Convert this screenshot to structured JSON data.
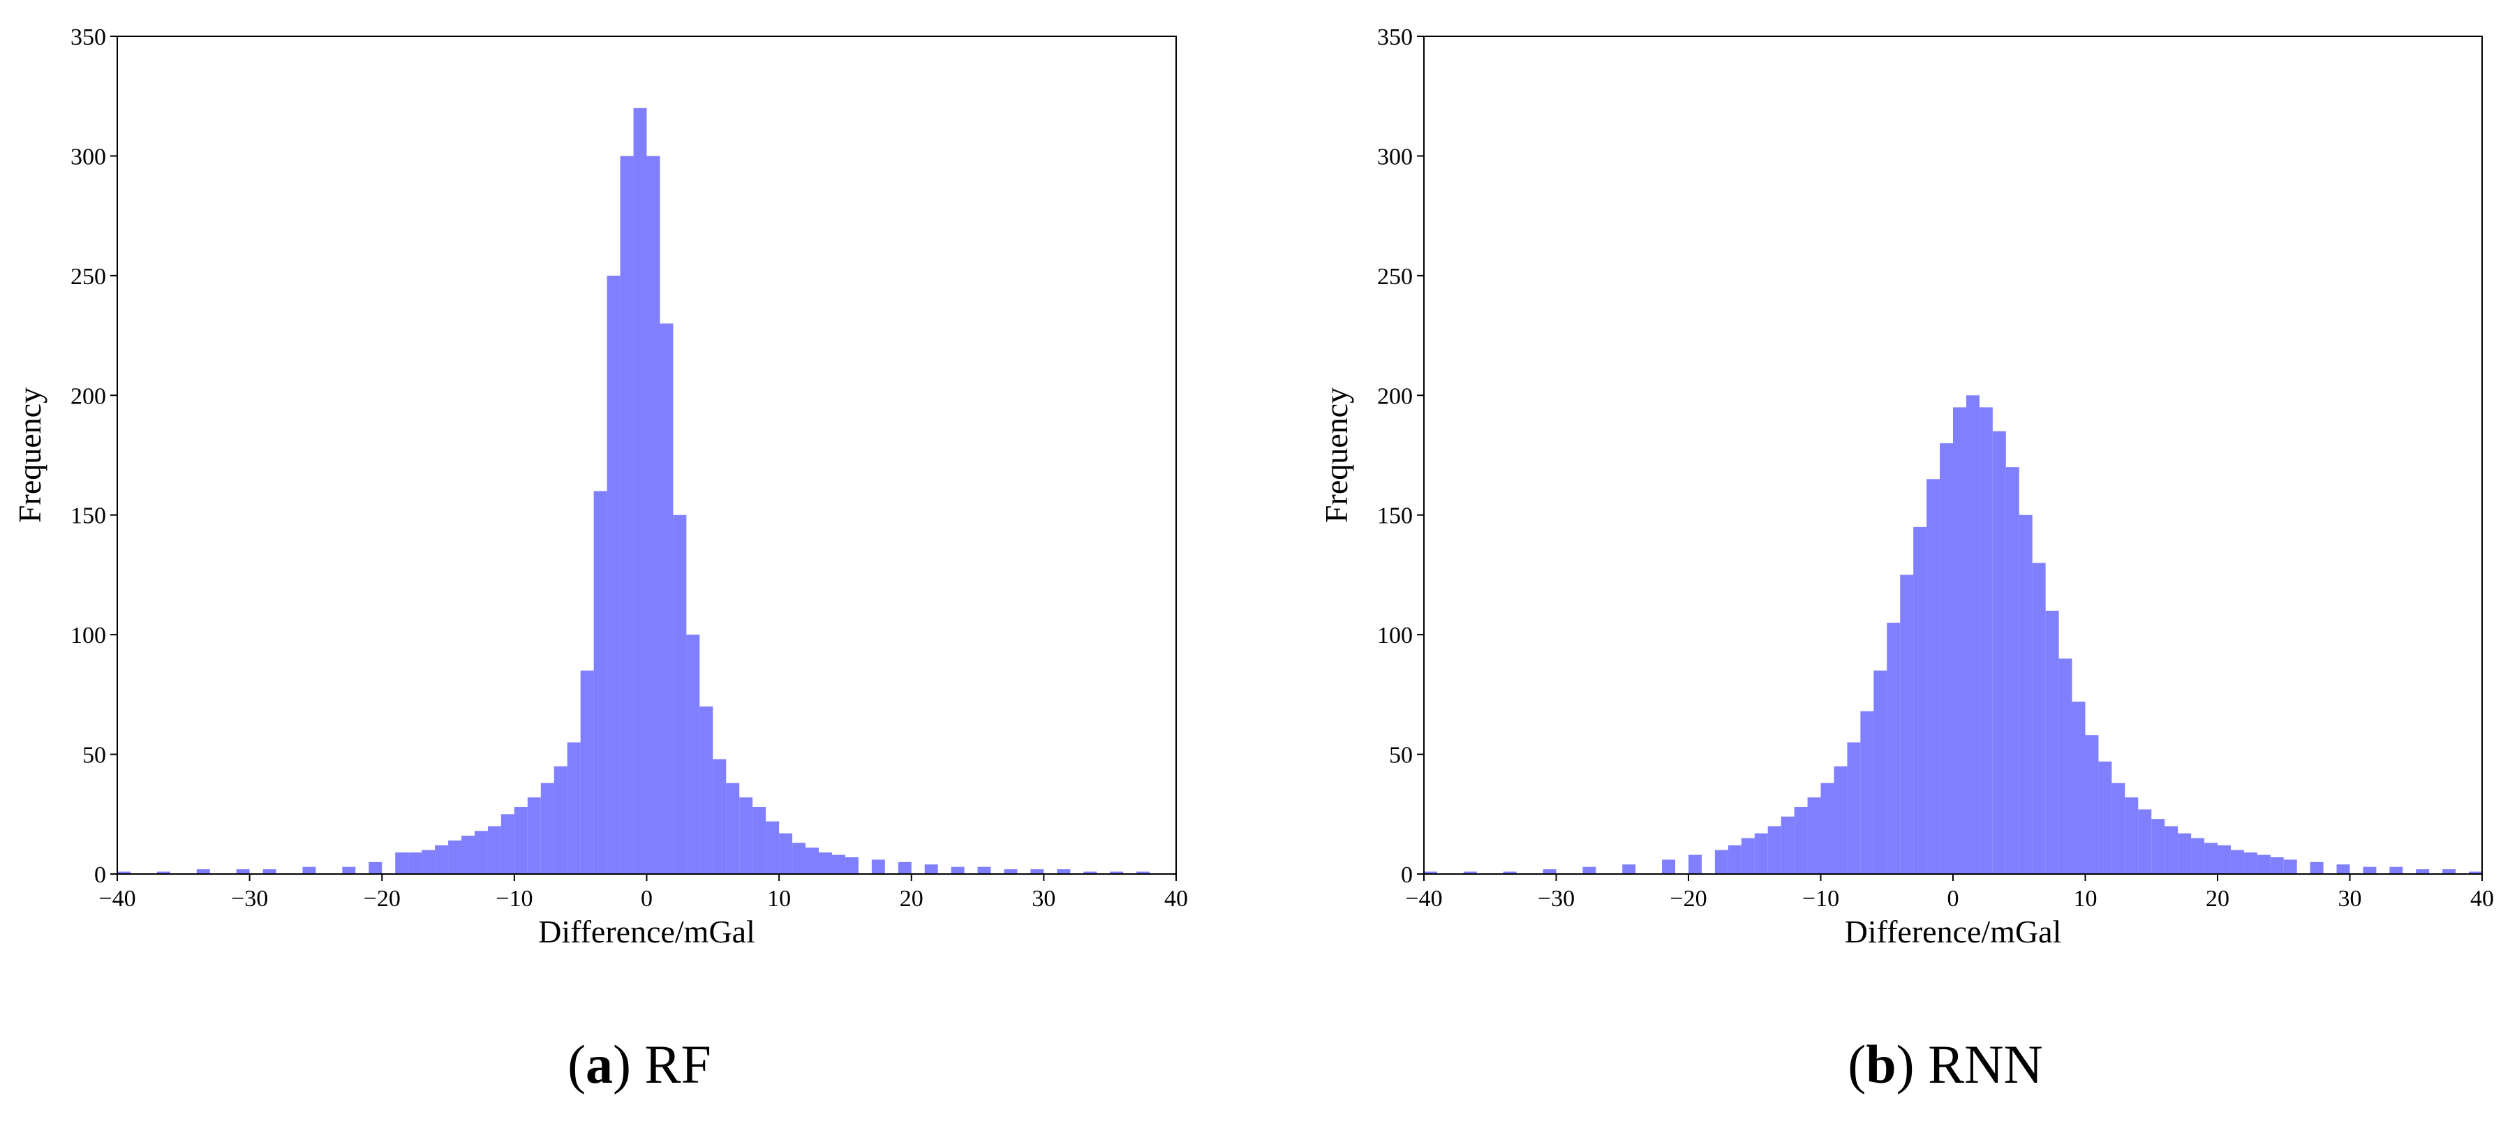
{
  "colors": {
    "bar": "#8080ff",
    "axis": "#000000",
    "background": "#ffffff"
  },
  "captions": [
    {
      "letter": "a",
      "label": "RF"
    },
    {
      "letter": "b",
      "label": "RNN"
    }
  ],
  "chart_data": [
    {
      "type": "bar",
      "histogram": true,
      "title": "",
      "xlabel": "Difference/mGal",
      "ylabel": "Frequency",
      "xlim": [
        -40,
        40
      ],
      "ylim": [
        0,
        350
      ],
      "xticks": [
        -40,
        -30,
        -20,
        -10,
        0,
        10,
        20,
        30,
        40
      ],
      "yticks": [
        0,
        50,
        100,
        150,
        200,
        250,
        300,
        350
      ],
      "xtick_labels": [
        "−40",
        "−30",
        "−20",
        "−10",
        "0",
        "10",
        "20",
        "30",
        "40"
      ],
      "ytick_labels": [
        "0",
        "50",
        "100",
        "150",
        "200",
        "250",
        "300",
        "350"
      ],
      "grid": false,
      "legend": "none",
      "x": [
        -39.5,
        -36.5,
        -33.5,
        -30.5,
        -28.5,
        -25.5,
        -22.5,
        -20.5,
        -18.5,
        -17.5,
        -16.5,
        -15.5,
        -14.5,
        -13.5,
        -12.5,
        -11.5,
        -10.5,
        -9.5,
        -8.5,
        -7.5,
        -6.5,
        -5.5,
        -4.5,
        -3.5,
        -2.5,
        -1.5,
        -0.5,
        0.5,
        1.5,
        2.5,
        3.5,
        4.5,
        5.5,
        6.5,
        7.5,
        8.5,
        9.5,
        10.5,
        11.5,
        12.5,
        13.5,
        14.5,
        15.5,
        17.5,
        19.5,
        21.5,
        23.5,
        25.5,
        27.5,
        29.5,
        31.5,
        33.5,
        35.5,
        37.5
      ],
      "values": [
        1,
        1,
        2,
        2,
        2,
        3,
        3,
        5,
        9,
        9,
        10,
        12,
        14,
        16,
        18,
        20,
        25,
        28,
        32,
        38,
        45,
        55,
        85,
        160,
        250,
        300,
        320,
        300,
        230,
        150,
        100,
        70,
        48,
        38,
        32,
        28,
        22,
        17,
        13,
        11,
        9,
        8,
        7,
        6,
        5,
        4,
        3,
        3,
        2,
        2,
        2,
        1,
        1,
        1
      ]
    },
    {
      "type": "bar",
      "histogram": true,
      "title": "",
      "xlabel": "Difference/mGal",
      "ylabel": "Frequency",
      "xlim": [
        -40,
        40
      ],
      "ylim": [
        0,
        350
      ],
      "xticks": [
        -40,
        -30,
        -20,
        -10,
        0,
        10,
        20,
        30,
        40
      ],
      "yticks": [
        0,
        50,
        100,
        150,
        200,
        250,
        300,
        350
      ],
      "xtick_labels": [
        "−40",
        "−30",
        "−20",
        "−10",
        "0",
        "10",
        "20",
        "30",
        "40"
      ],
      "ytick_labels": [
        "0",
        "50",
        "100",
        "150",
        "200",
        "250",
        "300",
        "350"
      ],
      "grid": false,
      "legend": "none",
      "x": [
        -39.5,
        -36.5,
        -33.5,
        -30.5,
        -27.5,
        -24.5,
        -21.5,
        -19.5,
        -17.5,
        -16.5,
        -15.5,
        -14.5,
        -13.5,
        -12.5,
        -11.5,
        -10.5,
        -9.5,
        -8.5,
        -7.5,
        -6.5,
        -5.5,
        -4.5,
        -3.5,
        -2.5,
        -1.5,
        -0.5,
        0.5,
        1.5,
        2.5,
        3.5,
        4.5,
        5.5,
        6.5,
        7.5,
        8.5,
        9.5,
        10.5,
        11.5,
        12.5,
        13.5,
        14.5,
        15.5,
        16.5,
        17.5,
        18.5,
        19.5,
        20.5,
        21.5,
        22.5,
        23.5,
        24.5,
        25.5,
        27.5,
        29.5,
        31.5,
        33.5,
        35.5,
        37.5,
        39.5
      ],
      "values": [
        1,
        1,
        1,
        2,
        3,
        4,
        6,
        8,
        10,
        12,
        15,
        17,
        20,
        24,
        28,
        32,
        38,
        45,
        55,
        68,
        85,
        105,
        125,
        145,
        165,
        180,
        195,
        200,
        195,
        185,
        170,
        150,
        130,
        110,
        90,
        72,
        58,
        47,
        38,
        32,
        27,
        23,
        20,
        17,
        15,
        13,
        12,
        10,
        9,
        8,
        7,
        6,
        5,
        4,
        3,
        3,
        2,
        2,
        1
      ]
    }
  ]
}
